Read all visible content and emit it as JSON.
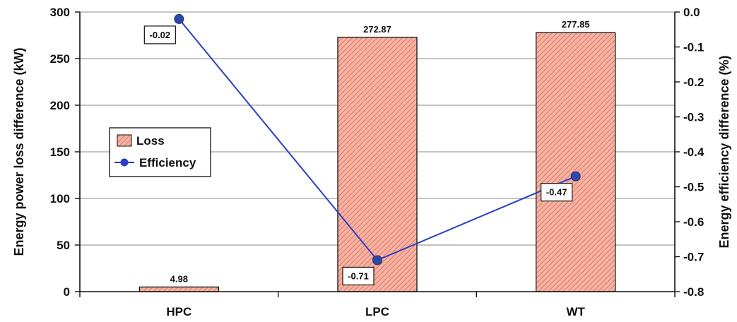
{
  "chart_data": {
    "type": "bar",
    "categories": [
      "HPC",
      "LPC",
      "WT"
    ],
    "series": [
      {
        "name": "Loss",
        "type": "bar",
        "axis": "left",
        "values": [
          4.98,
          272.87,
          277.85
        ],
        "labels": [
          "4.98",
          "272.87",
          "277.85"
        ],
        "color": "#f4a58f"
      },
      {
        "name": "Efficiency",
        "type": "line",
        "axis": "right",
        "values": [
          -0.02,
          -0.71,
          -0.47
        ],
        "labels": [
          "-0.02",
          "-0.71",
          "-0.47"
        ],
        "color": "#2a3fc4"
      }
    ],
    "ylabel": "Energy power loss difference (kW)",
    "y2label": "Energy efficiency difference (%)",
    "ylim": [
      0,
      300
    ],
    "y2lim": [
      -0.8,
      0.0
    ],
    "yticks": [
      "0",
      "50",
      "100",
      "150",
      "200",
      "250",
      "300"
    ],
    "y2ticks": [
      "0.0",
      "-0.1",
      "-0.2",
      "-0.3",
      "-0.4",
      "-0.5",
      "-0.6",
      "-0.7",
      "-0.8"
    ],
    "grid": true,
    "legend": "center-left"
  }
}
